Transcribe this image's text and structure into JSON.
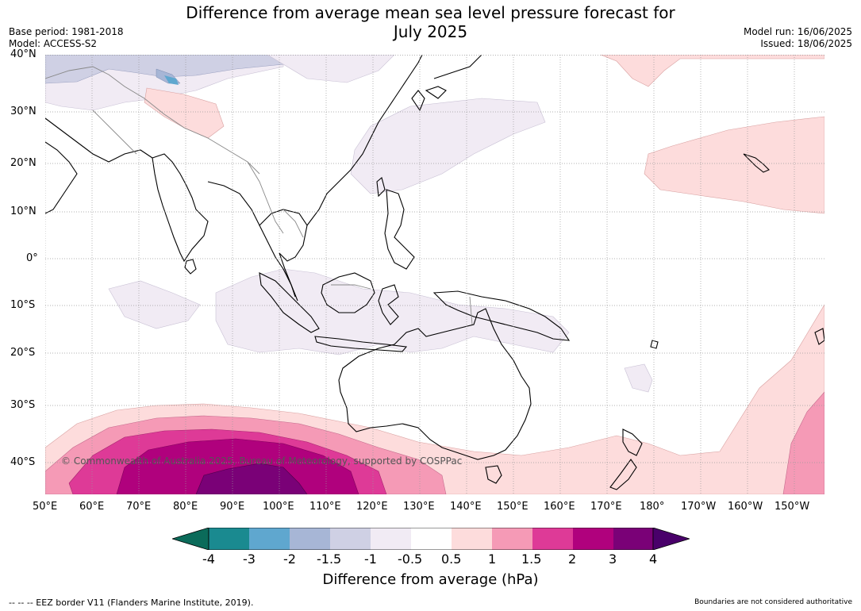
{
  "header": {
    "title_line1": "Difference from average mean sea level pressure forecast for",
    "title_line2": "July 2025",
    "base_period": "Base period: 1981-2018",
    "model": "Model: ACCESS-S2",
    "model_run": "Model run: 16/06/2025",
    "issued": "Issued: 18/06/2025"
  },
  "map": {
    "lat_labels": [
      "40°N",
      "30°N",
      "20°N",
      "10°N",
      "0°",
      "10°S",
      "20°S",
      "30°S",
      "40°S"
    ],
    "lon_labels": [
      "50°E",
      "60°E",
      "70°E",
      "80°E",
      "90°E",
      "100°E",
      "110°E",
      "120°E",
      "130°E",
      "140°E",
      "150°E",
      "160°E",
      "170°E",
      "180°",
      "170°W",
      "160°W",
      "150°W"
    ],
    "copyright": "© Commonwealth of Australia 2025, Bureau of Meteorology, supported by COSPPac",
    "colors": {
      "land_border": "#000000",
      "country_border": "#888888",
      "grid": "#999999"
    }
  },
  "colorbar": {
    "tick_labels": [
      "-4",
      "-3",
      "-2",
      "-1.5",
      "-1",
      "-0.5",
      "0.5",
      "1",
      "1.5",
      "2",
      "3",
      "4"
    ],
    "colors": [
      "#1a8a90",
      "#5fa7cf",
      "#a7b6d6",
      "#cfd0e4",
      "#f1ebf4",
      "#ffffff",
      "#fddcdc",
      "#f59ab6",
      "#de3a97",
      "#b0017d",
      "#7a0177"
    ],
    "under_color": "#0b6b5a",
    "over_color": "#49006a",
    "title": "Difference from average (hPa)"
  },
  "footer": {
    "eez": "--  --  -- EEZ border V11 (Flanders Marine Institute, 2019).",
    "disclaimer": "Boundaries are not considered authoritative"
  }
}
